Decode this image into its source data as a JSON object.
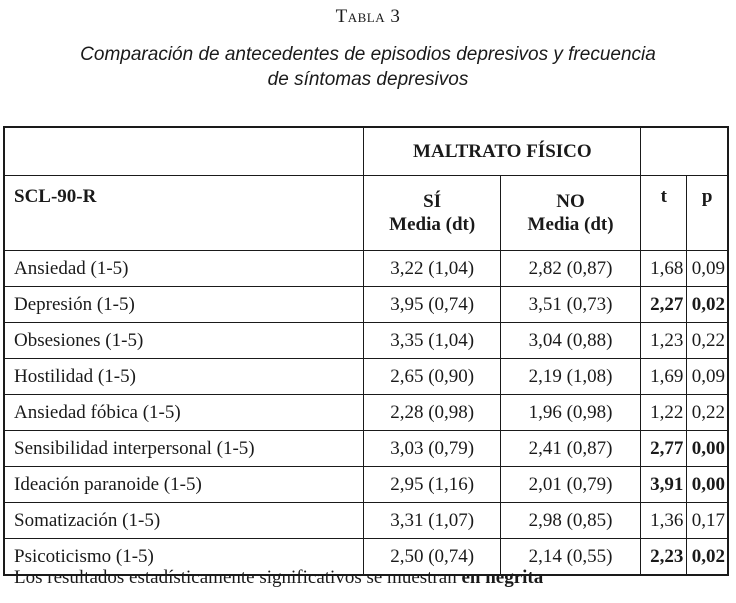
{
  "table_label": "Tabla 3",
  "caption_line1": "Comparación de antecedentes de episodios depresivos y frecuencia",
  "caption_line2": "de síntomas depresivos",
  "header": {
    "group": "MALTRATO FÍSICO",
    "first_col": "SCL-90-R",
    "si_label": "SÍ",
    "no_label": "NO",
    "media_label": "Media (dt)",
    "t_label": "t",
    "p_label": "p"
  },
  "rows": [
    {
      "name": "Ansiedad (1-5)",
      "si": "3,22 (1,04)",
      "no": "2,82 (0,87)",
      "t": "1,68",
      "p": "0,09",
      "significant": false
    },
    {
      "name": "Depresión (1-5)",
      "si": "3,95 (0,74)",
      "no": "3,51 (0,73)",
      "t": "2,27",
      "p": "0,02",
      "significant": true
    },
    {
      "name": "Obsesiones (1-5)",
      "si": "3,35 (1,04)",
      "no": "3,04 (0,88)",
      "t": "1,23",
      "p": "0,22",
      "significant": false
    },
    {
      "name": "Hostilidad (1-5)",
      "si": "2,65 (0,90)",
      "no": "2,19 (1,08)",
      "t": "1,69",
      "p": "0,09",
      "significant": false
    },
    {
      "name": "Ansiedad fóbica (1-5)",
      "si": "2,28 (0,98)",
      "no": "1,96 (0,98)",
      "t": "1,22",
      "p": "0,22",
      "significant": false
    },
    {
      "name": "Sensibilidad interpersonal (1-5)",
      "si": "3,03 (0,79)",
      "no": "2,41 (0,87)",
      "t": "2,77",
      "p": "0,00",
      "significant": true
    },
    {
      "name": "Ideación paranoide (1-5)",
      "si": "2,95 (1,16)",
      "no": "2,01 (0,79)",
      "t": "3,91",
      "p": "0,00",
      "significant": true
    },
    {
      "name": "Somatización (1-5)",
      "si": "3,31 (1,07)",
      "no": "2,98 (0,85)",
      "t": "1,36",
      "p": "0,17",
      "significant": false
    },
    {
      "name": "Psicoticismo (1-5)",
      "si": "2,50 (0,74)",
      "no": "2,14 (0,55)",
      "t": "2,23",
      "p": "0,02",
      "significant": true
    }
  ],
  "footnote": {
    "text": "Los resultados estadísticamente significativos se muestran ",
    "bold": "en negrita"
  }
}
